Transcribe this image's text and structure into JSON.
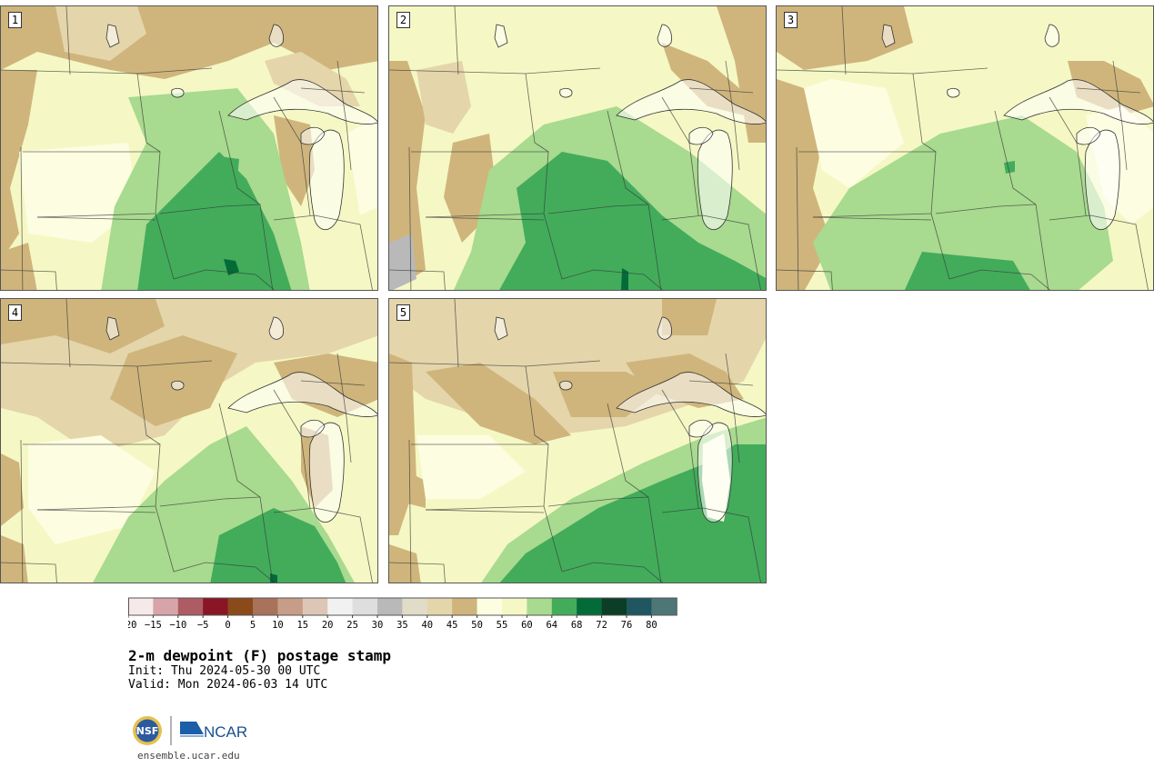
{
  "figure": {
    "title": "2-m dewpoint (F) postage stamp",
    "init": "Init: Thu 2024-05-30 00 UTC",
    "valid": "Valid: Mon 2024-06-03 14 UTC",
    "website": "ensemble.ucar.edu",
    "logo_left": "NSF",
    "logo_right": "NCAR"
  },
  "panels": [
    {
      "id": "1",
      "label": "1"
    },
    {
      "id": "2",
      "label": "2"
    },
    {
      "id": "3",
      "label": "3"
    },
    {
      "id": "4",
      "label": "4"
    },
    {
      "id": "5",
      "label": "5"
    }
  ],
  "colorbar": {
    "units": "F",
    "tick_labels": [
      "−20",
      "−15",
      "−10",
      "−5",
      "0",
      "5",
      "10",
      "15",
      "20",
      "25",
      "30",
      "35",
      "40",
      "45",
      "50",
      "55",
      "60",
      "64",
      "68",
      "72",
      "76",
      "80"
    ],
    "colors": [
      "#f5e9e9",
      "#d6a4a9",
      "#ad5c63",
      "#8a1524",
      "#8a4a1a",
      "#a8735a",
      "#c79d87",
      "#ddc6b6",
      "#f1f1f1",
      "#dedede",
      "#b9b9b9",
      "#e1dcc8",
      "#e4d5ab",
      "#cfb57c",
      "#fdfde2",
      "#f5f8c4",
      "#a8da8f",
      "#42ac5b",
      "#036b38",
      "#0c3d26",
      "#1f5660",
      "#4e7677"
    ]
  },
  "map_colors": {
    "c25": "#dedede",
    "c30": "#b9b9b9",
    "c35": "#e1dcc8",
    "c40": "#e4d5ab",
    "c45": "#cfb57c",
    "c50": "#fdfde2",
    "c55": "#f5f8c4",
    "c60": "#a8da8f",
    "c64": "#42ac5b",
    "c68": "#036b38"
  }
}
